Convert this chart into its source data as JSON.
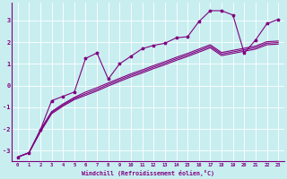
{
  "background_color": "#c8eef0",
  "plot_bg_color": "#c8eef0",
  "grid_color": "#ffffff",
  "line_color": "#800080",
  "xlabel": "Windchill (Refroidissement éolien,°C)",
  "xlim": [
    -0.5,
    23.5
  ],
  "ylim": [
    -3.5,
    3.8
  ],
  "yticks": [
    -3,
    -2,
    -1,
    0,
    1,
    2,
    3
  ],
  "xtick_labels": [
    "0",
    "1",
    "2",
    "3",
    "4",
    "5",
    "6",
    "7",
    "8",
    "9",
    "10",
    "11",
    "12",
    "13",
    "14",
    "15",
    "16",
    "17",
    "18",
    "19",
    "20",
    "21",
    "22",
    "23"
  ],
  "line1_x": [
    0,
    1,
    2,
    3,
    4,
    5,
    6,
    7,
    8,
    9,
    10,
    11,
    12,
    13,
    14,
    15,
    16,
    17,
    18,
    19,
    20,
    21,
    22,
    23
  ],
  "line1_y": [
    -3.3,
    -3.1,
    -2.05,
    -0.7,
    -0.5,
    -0.3,
    1.25,
    1.5,
    0.3,
    1.0,
    1.35,
    1.7,
    1.85,
    1.95,
    2.2,
    2.25,
    2.95,
    3.45,
    3.45,
    3.25,
    1.5,
    2.1,
    2.85,
    3.05
  ],
  "line2_x": [
    0,
    1,
    2,
    3,
    4,
    5,
    6,
    7,
    8,
    9,
    10,
    11,
    12,
    13,
    14,
    15,
    16,
    17,
    18,
    19,
    20,
    21,
    22,
    23
  ],
  "line2_y": [
    -3.3,
    -3.1,
    -2.05,
    -1.2,
    -0.85,
    -0.55,
    -0.3,
    -0.1,
    0.12,
    0.33,
    0.54,
    0.72,
    0.92,
    1.1,
    1.3,
    1.48,
    1.68,
    1.88,
    1.52,
    1.62,
    1.72,
    1.82,
    2.02,
    2.05
  ],
  "line3_x": [
    0,
    1,
    2,
    3,
    4,
    5,
    6,
    7,
    8,
    9,
    10,
    11,
    12,
    13,
    14,
    15,
    16,
    17,
    18,
    19,
    20,
    21,
    22,
    23
  ],
  "line3_y": [
    -3.3,
    -3.1,
    -2.1,
    -1.25,
    -0.9,
    -0.6,
    -0.38,
    -0.18,
    0.05,
    0.26,
    0.47,
    0.65,
    0.85,
    1.03,
    1.23,
    1.41,
    1.61,
    1.81,
    1.45,
    1.55,
    1.65,
    1.75,
    1.95,
    1.98
  ],
  "line4_x": [
    0,
    1,
    2,
    3,
    4,
    5,
    6,
    7,
    8,
    9,
    10,
    11,
    12,
    13,
    14,
    15,
    16,
    17,
    18,
    19,
    20,
    21,
    22,
    23
  ],
  "line4_y": [
    -3.3,
    -3.1,
    -2.15,
    -1.3,
    -0.95,
    -0.65,
    -0.45,
    -0.25,
    -0.02,
    0.19,
    0.4,
    0.58,
    0.78,
    0.96,
    1.16,
    1.34,
    1.54,
    1.74,
    1.38,
    1.48,
    1.58,
    1.68,
    1.88,
    1.91
  ]
}
